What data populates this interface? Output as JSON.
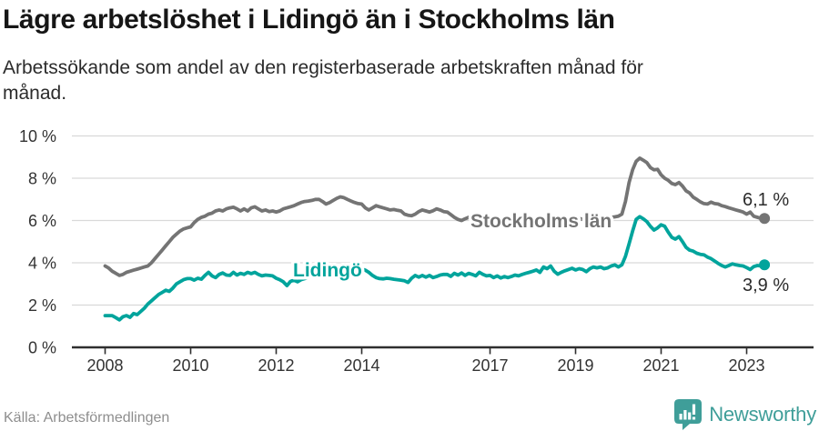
{
  "header": {
    "title": "Lägre arbetslöshet i Lidingö än i Stockholms län",
    "subtitle": "Arbetssökande som andel av den registerbaserade arbetskraften månad för\nmånad."
  },
  "footer": {
    "source": "Källa: Arbetsförmedlingen",
    "brand": "Newsworthy"
  },
  "colors": {
    "stockholm_line": "#747474",
    "lidingo_line": "#00a49c",
    "brand_teal": "#3f9e99",
    "gridline": "#d9d9d9",
    "axis": "#2f2f2f",
    "tick_text": "#333333",
    "source_text": "#8e8e8e"
  },
  "chart_data": {
    "type": "line",
    "title": "Lägre arbetslöshet i Lidingö än i Stockholms län",
    "subtitle": "Arbetssökande som andel av den registerbaserade arbetskraften månad för månad.",
    "unit": "%",
    "x_start_year": 2008,
    "points_per_year": 12,
    "ylim": [
      0,
      10
    ],
    "ytick_labels": [
      "0 %",
      "2 %",
      "4 %",
      "6 %",
      "8 %",
      "10 %"
    ],
    "xtick_years": [
      2008,
      2010,
      2012,
      2014,
      2017,
      2019,
      2021,
      2023
    ],
    "xtick_labels": [
      "2008",
      "2010",
      "2012",
      "2014",
      "2017",
      "2019",
      "2021",
      "2023"
    ],
    "grid": true,
    "legend_position": "inline-labels",
    "series": [
      {
        "name": "Stockholms län",
        "color": "#747474",
        "end_label": "6,1 %",
        "end_value": 6.1,
        "values": [
          3.85,
          3.75,
          3.6,
          3.5,
          3.4,
          3.45,
          3.55,
          3.6,
          3.65,
          3.7,
          3.75,
          3.8,
          3.85,
          4.0,
          4.2,
          4.4,
          4.6,
          4.8,
          5.0,
          5.2,
          5.35,
          5.5,
          5.6,
          5.65,
          5.7,
          5.9,
          6.05,
          6.15,
          6.2,
          6.3,
          6.35,
          6.45,
          6.5,
          6.45,
          6.55,
          6.6,
          6.63,
          6.55,
          6.45,
          6.55,
          6.45,
          6.6,
          6.65,
          6.55,
          6.45,
          6.5,
          6.42,
          6.45,
          6.4,
          6.45,
          6.55,
          6.6,
          6.65,
          6.7,
          6.78,
          6.85,
          6.9,
          6.92,
          6.95,
          7.0,
          7.0,
          6.9,
          6.78,
          6.85,
          6.95,
          7.05,
          7.12,
          7.08,
          7.0,
          6.92,
          6.85,
          6.8,
          6.78,
          6.6,
          6.5,
          6.6,
          6.7,
          6.65,
          6.6,
          6.55,
          6.5,
          6.52,
          6.48,
          6.45,
          6.3,
          6.25,
          6.23,
          6.3,
          6.42,
          6.5,
          6.45,
          6.4,
          6.46,
          6.55,
          6.5,
          6.42,
          6.4,
          6.28,
          6.15,
          6.05,
          6.0,
          6.08,
          6.15,
          6.1,
          6.05,
          6.1,
          6.05,
          6.0,
          6.0,
          6.05,
          6.1,
          6.05,
          6.0,
          6.05,
          6.1,
          6.05,
          6.0,
          5.95,
          6.0,
          6.05,
          6.0,
          5.95,
          5.9,
          5.95,
          6.0,
          5.95,
          5.9,
          5.95,
          6.0,
          6.05,
          6.0,
          6.05,
          6.05,
          6.1,
          6.05,
          6.1,
          6.15,
          6.1,
          6.15,
          6.2,
          6.15,
          6.1,
          6.15,
          6.17,
          6.2,
          6.3,
          6.9,
          7.8,
          8.4,
          8.8,
          8.95,
          8.85,
          8.74,
          8.5,
          8.4,
          8.42,
          8.16,
          8.0,
          7.9,
          7.75,
          7.7,
          7.8,
          7.63,
          7.4,
          7.3,
          7.1,
          7.0,
          6.88,
          6.8,
          6.78,
          6.87,
          6.8,
          6.78,
          6.7,
          6.66,
          6.6,
          6.55,
          6.5,
          6.45,
          6.4,
          6.3,
          6.4,
          6.2,
          6.15,
          6.1,
          6.1
        ]
      },
      {
        "name": "Lidingö",
        "color": "#00a49c",
        "end_label": "3,9 %",
        "end_value": 3.9,
        "values": [
          1.5,
          1.5,
          1.5,
          1.4,
          1.3,
          1.45,
          1.5,
          1.42,
          1.6,
          1.55,
          1.7,
          1.85,
          2.05,
          2.2,
          2.35,
          2.5,
          2.6,
          2.7,
          2.65,
          2.8,
          3.0,
          3.1,
          3.2,
          3.25,
          3.25,
          3.18,
          3.27,
          3.22,
          3.4,
          3.55,
          3.38,
          3.3,
          3.45,
          3.52,
          3.42,
          3.4,
          3.55,
          3.42,
          3.5,
          3.45,
          3.55,
          3.49,
          3.55,
          3.45,
          3.38,
          3.42,
          3.4,
          3.38,
          3.27,
          3.2,
          3.1,
          2.92,
          3.12,
          3.18,
          3.1,
          3.2,
          3.25,
          3.3,
          3.35,
          3.4,
          3.45,
          3.5,
          3.55,
          3.5,
          3.55,
          3.6,
          3.58,
          3.62,
          3.65,
          3.7,
          3.68,
          3.72,
          3.7,
          3.65,
          3.55,
          3.4,
          3.3,
          3.25,
          3.24,
          3.27,
          3.25,
          3.22,
          3.2,
          3.18,
          3.15,
          3.07,
          3.27,
          3.4,
          3.32,
          3.4,
          3.32,
          3.4,
          3.3,
          3.35,
          3.42,
          3.45,
          3.45,
          3.36,
          3.5,
          3.42,
          3.52,
          3.4,
          3.5,
          3.45,
          3.38,
          3.55,
          3.45,
          3.38,
          3.4,
          3.3,
          3.38,
          3.28,
          3.35,
          3.3,
          3.35,
          3.42,
          3.38,
          3.45,
          3.5,
          3.55,
          3.6,
          3.66,
          3.55,
          3.8,
          3.72,
          3.85,
          3.6,
          3.46,
          3.55,
          3.62,
          3.68,
          3.74,
          3.66,
          3.72,
          3.68,
          3.58,
          3.72,
          3.8,
          3.76,
          3.8,
          3.72,
          3.76,
          3.85,
          3.9,
          3.8,
          3.9,
          4.3,
          4.9,
          5.5,
          6.05,
          6.18,
          6.08,
          5.95,
          5.72,
          5.55,
          5.65,
          5.8,
          5.73,
          5.45,
          5.2,
          5.12,
          5.24,
          5.0,
          4.73,
          4.6,
          4.55,
          4.45,
          4.4,
          4.38,
          4.27,
          4.2,
          4.08,
          3.97,
          3.87,
          3.8,
          3.87,
          3.95,
          3.9,
          3.87,
          3.85,
          3.77,
          3.68,
          3.82,
          3.87,
          3.85,
          3.9
        ]
      }
    ]
  }
}
